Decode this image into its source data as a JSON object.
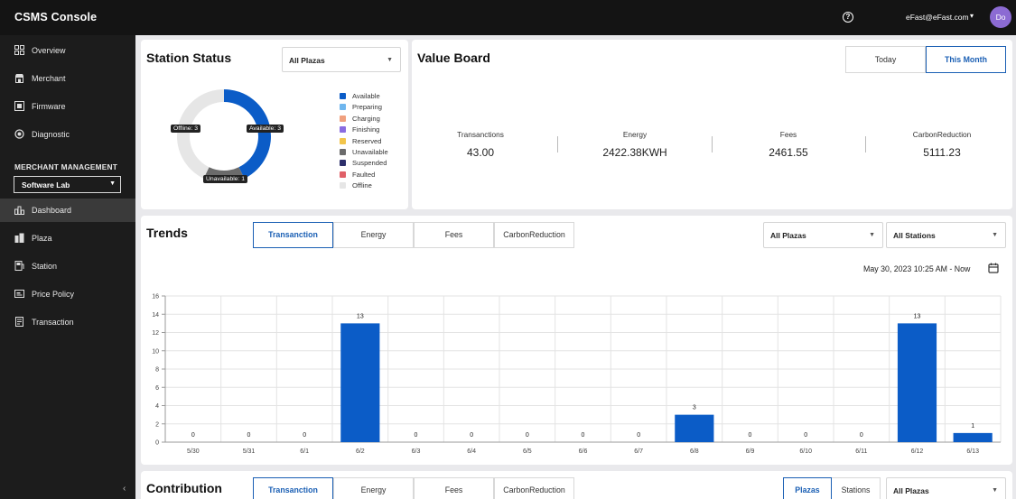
{
  "header": {
    "title": "CSMS Console",
    "help_icon": "?",
    "user_email": "eFast@eFast.com",
    "user_caret": "▾",
    "avatar_initials": "Do"
  },
  "sidebar": {
    "items": [
      {
        "label": "Overview",
        "icon": "overview-icon"
      },
      {
        "label": "Merchant",
        "icon": "merchant-icon"
      },
      {
        "label": "Firmware",
        "icon": "firmware-icon"
      },
      {
        "label": "Diagnostic",
        "icon": "diagnostic-icon"
      }
    ],
    "section_title": "MERCHANT MANAGEMENT",
    "merchant_select": "Software Lab",
    "sub_items": [
      {
        "label": "Dashboard",
        "icon": "dashboard-icon",
        "active": true
      },
      {
        "label": "Plaza",
        "icon": "plaza-icon"
      },
      {
        "label": "Station",
        "icon": "station-icon"
      },
      {
        "label": "Price Policy",
        "icon": "price-policy-icon"
      },
      {
        "label": "Transaction",
        "icon": "transaction-icon"
      }
    ],
    "collapse": "‹"
  },
  "station_status": {
    "title": "Station Status",
    "plaza_select": "All Plazas",
    "donut": {
      "available": 3,
      "unavailable": 1,
      "offline": 3
    },
    "tags": {
      "available": "Available: 3",
      "offline": "Offline: 3",
      "unavailable": "Unavailable: 1"
    },
    "legend": [
      {
        "label": "Available",
        "color": "#0b5cc7"
      },
      {
        "label": "Preparing",
        "color": "#6fb6ee"
      },
      {
        "label": "Charging",
        "color": "#f0a07e"
      },
      {
        "label": "Finishing",
        "color": "#8a6ce0"
      },
      {
        "label": "Reserved",
        "color": "#f2c54b"
      },
      {
        "label": "Unavailable",
        "color": "#6b6b6b"
      },
      {
        "label": "Suspended",
        "color": "#2d2f6b"
      },
      {
        "label": "Faulted",
        "color": "#e06068"
      },
      {
        "label": "Offline",
        "color": "#e6e6e6"
      }
    ]
  },
  "value_board": {
    "title": "Value Board",
    "toggle": {
      "today": "Today",
      "this_month": "This Month"
    },
    "metrics": [
      {
        "label": "Transanctions",
        "value": "43.00"
      },
      {
        "label": "Energy",
        "value": "2422.38KWH"
      },
      {
        "label": "Fees",
        "value": "2461.55"
      },
      {
        "label": "CarbonReduction",
        "value": "5111.23"
      }
    ]
  },
  "trends": {
    "title": "Trends",
    "tabs": [
      "Transanction",
      "Energy",
      "Fees",
      "CarbonReduction"
    ],
    "plaza_select": "All Plazas",
    "station_select": "All Stations",
    "date_range": "May 30, 2023 10:25 AM - Now"
  },
  "chart_data": {
    "type": "bar",
    "categories": [
      "5/30",
      "5/31",
      "6/1",
      "6/2",
      "6/3",
      "6/4",
      "6/5",
      "6/6",
      "6/7",
      "6/8",
      "6/9",
      "6/10",
      "6/11",
      "6/12",
      "6/13"
    ],
    "values": [
      0,
      0,
      0,
      13,
      0,
      0,
      0,
      0,
      0,
      3,
      0,
      0,
      0,
      13,
      1
    ],
    "ylim": [
      0,
      16
    ],
    "yticks": [
      0,
      2,
      4,
      6,
      8,
      10,
      12,
      14,
      16
    ],
    "title": "",
    "xlabel": "",
    "ylabel": "",
    "color": "#0b5cc7"
  },
  "contribution": {
    "title": "Contribution",
    "tabs": [
      "Transanction",
      "Energy",
      "Fees",
      "CarbonReduction"
    ],
    "toggle": {
      "plazas": "Plazas",
      "stations": "Stations"
    },
    "plaza_select": "All Plazas"
  }
}
